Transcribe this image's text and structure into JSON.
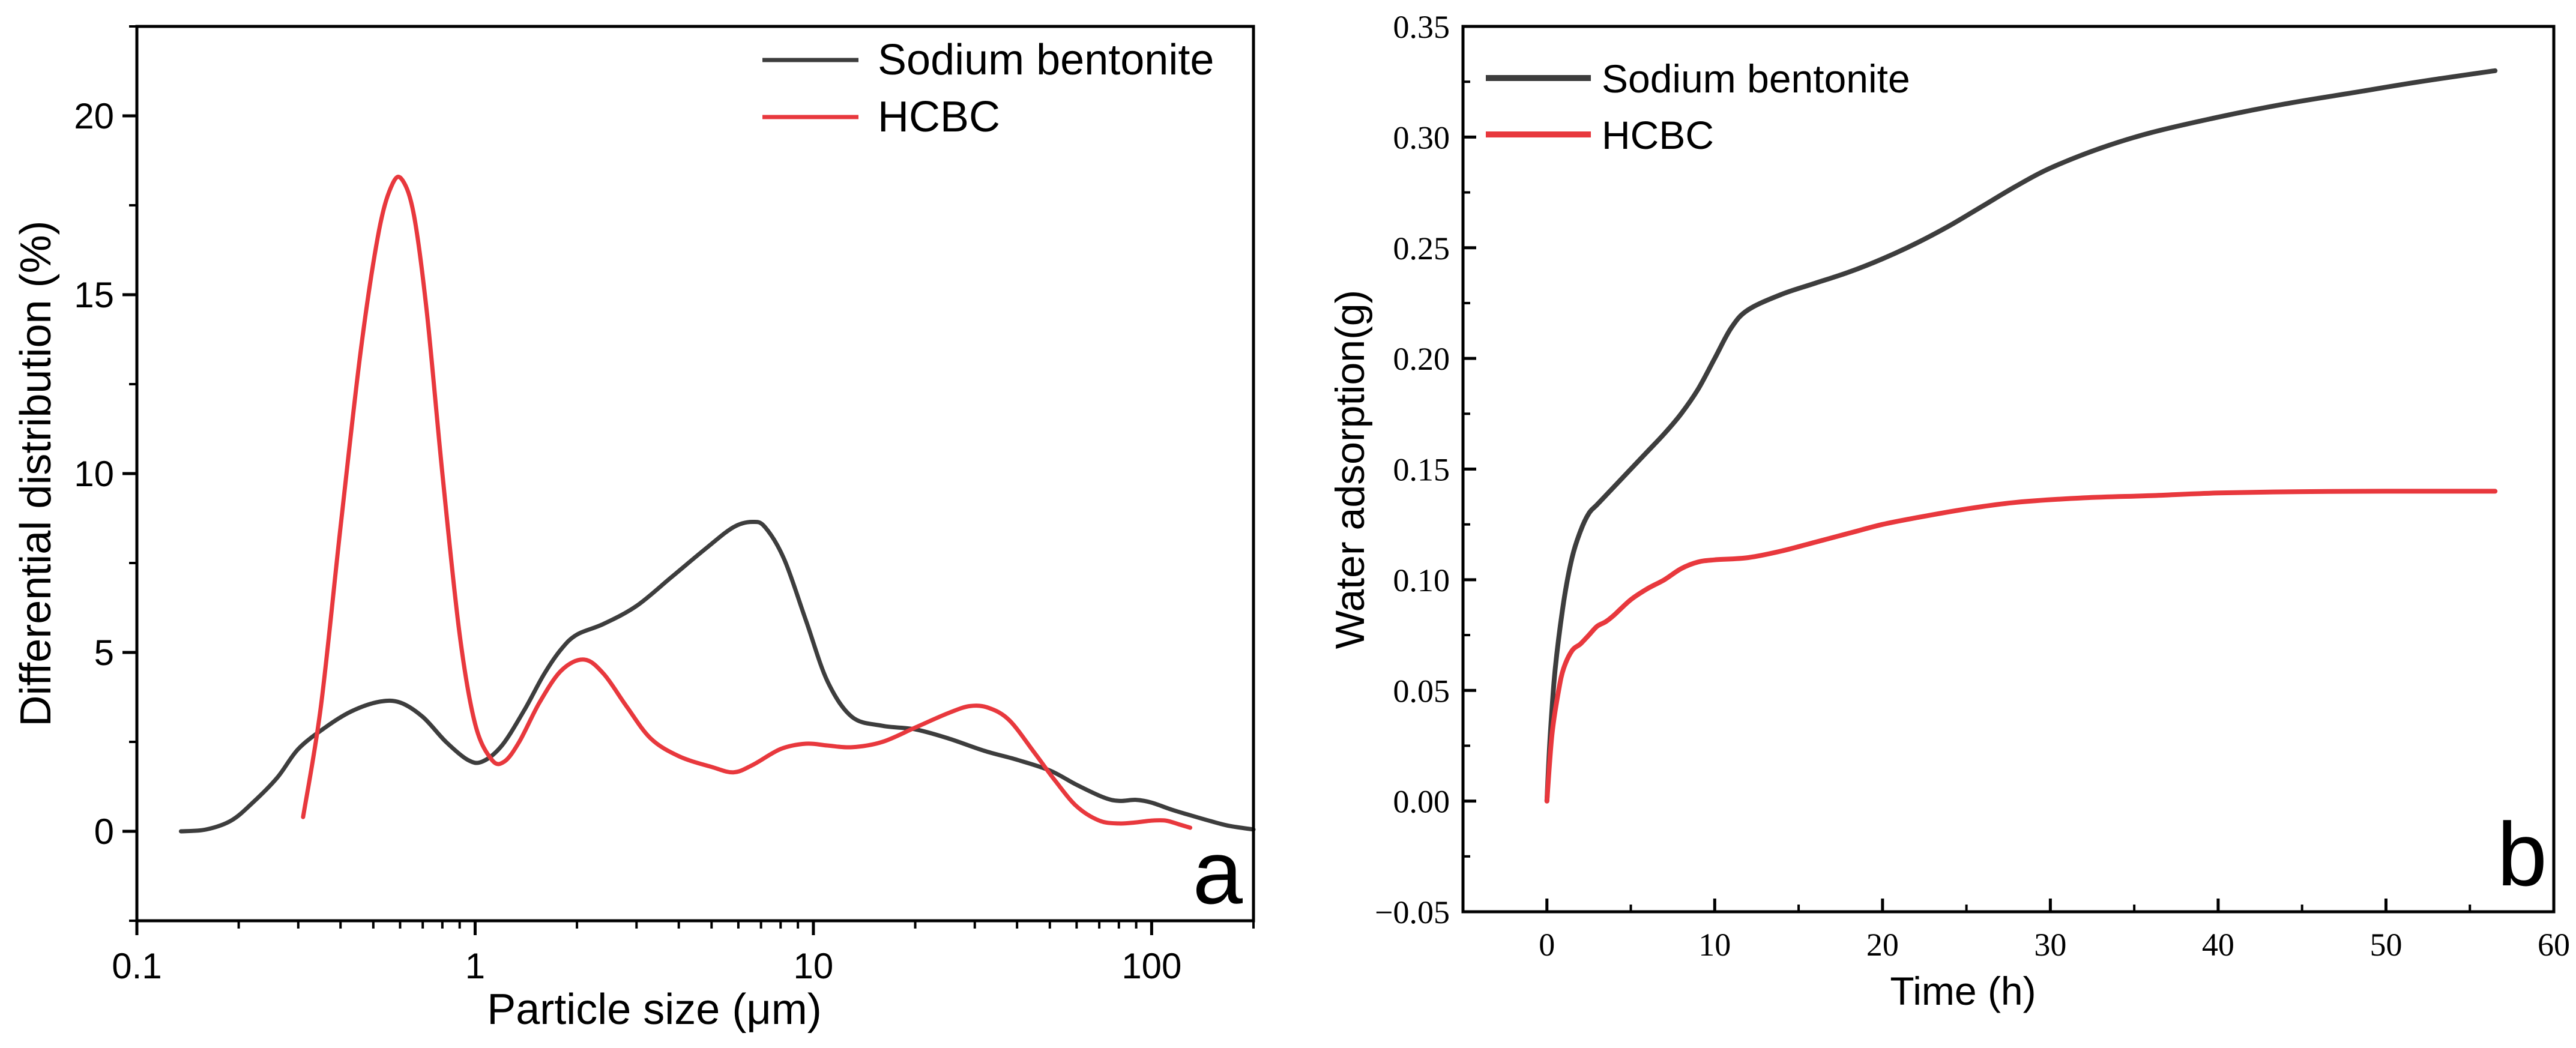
{
  "chart_data": [
    {
      "panel_label": "a",
      "type": "line",
      "xscale": "log",
      "xlabel": "Particle size (μm)",
      "ylabel": "Differential distribution (%)",
      "xlim": [
        0.1,
        200
      ],
      "ylim": [
        -2.5,
        22.5
      ],
      "x_ticks": [
        0.1,
        1,
        10,
        100
      ],
      "x_tick_labels": [
        "0.1",
        "1",
        "10",
        "100"
      ],
      "y_ticks": [
        0,
        5,
        10,
        15,
        20
      ],
      "y_tick_labels": [
        "0",
        "5",
        "10",
        "15",
        "20"
      ],
      "legend_position": "top-right",
      "series": [
        {
          "name": "Sodium bentonite",
          "color": "#3d3d3d",
          "x": [
            0.135,
            0.16,
            0.19,
            0.22,
            0.26,
            0.3,
            0.36,
            0.43,
            0.52,
            0.6,
            0.7,
            0.82,
            0.95,
            1.05,
            1.2,
            1.4,
            1.6,
            1.8,
            2.0,
            2.4,
            3.0,
            3.8,
            4.8,
            5.8,
            6.6,
            7.2,
            8.2,
            9.5,
            11,
            13,
            16,
            20,
            25,
            32,
            40,
            50,
            60,
            72,
            80,
            90,
            100,
            115,
            130,
            150,
            170,
            200
          ],
          "y": [
            0,
            0.05,
            0.3,
            0.8,
            1.5,
            2.3,
            2.9,
            3.35,
            3.62,
            3.6,
            3.2,
            2.5,
            2.0,
            1.95,
            2.4,
            3.4,
            4.4,
            5.1,
            5.5,
            5.8,
            6.3,
            7.1,
            7.9,
            8.5,
            8.65,
            8.5,
            7.6,
            5.9,
            4.2,
            3.2,
            2.95,
            2.85,
            2.6,
            2.25,
            2.0,
            1.7,
            1.3,
            0.95,
            0.85,
            0.88,
            0.8,
            0.6,
            0.45,
            0.28,
            0.15,
            0.05
          ]
        },
        {
          "name": "HCBC",
          "color": "#e8383d",
          "x": [
            0.31,
            0.35,
            0.4,
            0.46,
            0.52,
            0.57,
            0.61,
            0.66,
            0.72,
            0.8,
            0.9,
            1.0,
            1.12,
            1.22,
            1.35,
            1.55,
            1.8,
            2.1,
            2.4,
            2.8,
            3.3,
            4.0,
            5.0,
            5.8,
            6.6,
            8.0,
            9.5,
            11,
            13,
            16,
            20,
            25,
            29,
            33,
            38,
            45,
            52,
            60,
            70,
            80,
            90,
            100,
            110,
            120,
            130
          ],
          "y": [
            0.4,
            3.5,
            8.5,
            13.5,
            16.8,
            18.1,
            18.2,
            17.2,
            14.5,
            10.0,
            5.5,
            3.0,
            2.0,
            1.95,
            2.5,
            3.6,
            4.5,
            4.8,
            4.4,
            3.5,
            2.6,
            2.1,
            1.8,
            1.65,
            1.85,
            2.3,
            2.45,
            2.4,
            2.35,
            2.5,
            2.9,
            3.3,
            3.5,
            3.45,
            3.1,
            2.2,
            1.4,
            0.7,
            0.3,
            0.22,
            0.25,
            0.3,
            0.3,
            0.2,
            0.1
          ]
        }
      ]
    },
    {
      "panel_label": "b",
      "type": "line",
      "xlabel": "Time (h)",
      "ylabel": "Water adsorption(g)",
      "xlim": [
        -5,
        60
      ],
      "ylim": [
        -0.05,
        0.35
      ],
      "x_ticks": [
        0,
        10,
        20,
        30,
        40,
        50,
        60
      ],
      "x_tick_labels": [
        "0",
        "10",
        "20",
        "30",
        "40",
        "50",
        "60"
      ],
      "y_ticks": [
        -0.05,
        0,
        0.05,
        0.1,
        0.15,
        0.2,
        0.25,
        0.3,
        0.35
      ],
      "y_tick_labels": [
        "−0.05",
        "0.00",
        "0.05",
        "0.10",
        "0.15",
        "0.20",
        "0.25",
        "0.30",
        "0.35"
      ],
      "legend_position": "top-left",
      "series": [
        {
          "name": "Sodium bentonite",
          "color": "#3d3d3d",
          "x": [
            0,
            0.2,
            0.5,
            1.0,
            1.5,
            2.0,
            2.5,
            3.0,
            4.0,
            5.0,
            6.0,
            7.0,
            8.0,
            9.0,
            10.0,
            11.0,
            12.0,
            14.0,
            16.0,
            18.0,
            20.0,
            22.0,
            24.0,
            26.0,
            28.0,
            30.0,
            33.0,
            36.0,
            40.0,
            44.0,
            48.0,
            52.0,
            56.5
          ],
          "y": [
            0,
            0.03,
            0.06,
            0.09,
            0.11,
            0.122,
            0.13,
            0.134,
            0.142,
            0.15,
            0.158,
            0.166,
            0.175,
            0.186,
            0.2,
            0.214,
            0.222,
            0.229,
            0.234,
            0.239,
            0.245,
            0.252,
            0.26,
            0.269,
            0.278,
            0.286,
            0.295,
            0.302,
            0.309,
            0.315,
            0.32,
            0.325,
            0.33
          ]
        },
        {
          "name": "HCBC",
          "color": "#e8383d",
          "x": [
            0,
            0.3,
            0.7,
            1.0,
            1.5,
            2.0,
            2.5,
            3.0,
            3.5,
            4.0,
            5.0,
            6.0,
            7.0,
            8.0,
            9.0,
            10.0,
            12.0,
            14.0,
            16.0,
            18.0,
            20.0,
            22.0,
            25.0,
            28.0,
            32.0,
            36.0,
            40.0,
            45.0,
            50.0,
            56.5
          ],
          "y": [
            0,
            0.03,
            0.05,
            0.06,
            0.068,
            0.071,
            0.075,
            0.079,
            0.081,
            0.084,
            0.091,
            0.096,
            0.1,
            0.105,
            0.108,
            0.109,
            0.11,
            0.113,
            0.117,
            0.121,
            0.125,
            0.128,
            0.132,
            0.135,
            0.137,
            0.138,
            0.1392,
            0.1398,
            0.14,
            0.14
          ]
        }
      ]
    }
  ]
}
